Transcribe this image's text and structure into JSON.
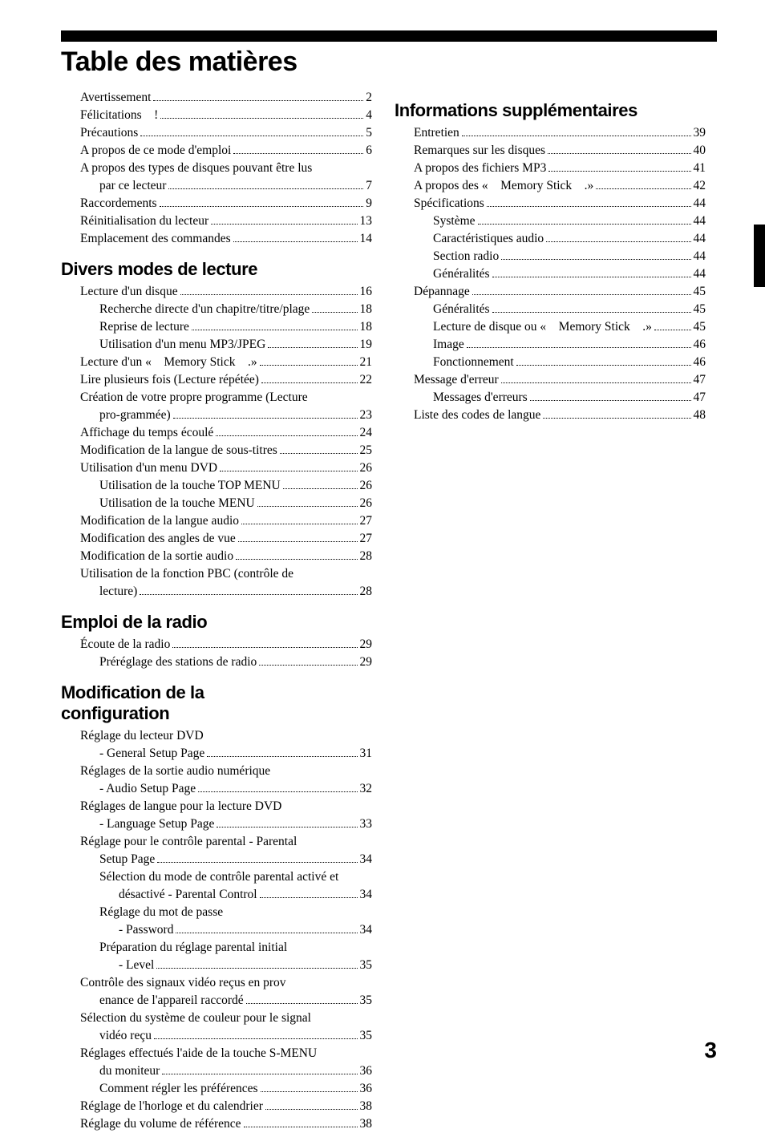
{
  "strap": true,
  "main_title": "Table des matières",
  "page_number": "3",
  "columns": [
    {
      "groups": [
        {
          "heading": null,
          "entries": [
            {
              "indent": 0,
              "label": "Avertissement",
              "page": "2"
            },
            {
              "indent": 0,
              "label": "Félicitations　!",
              "page": "4"
            },
            {
              "indent": 0,
              "label": "Précautions",
              "page": "5"
            },
            {
              "indent": 0,
              "label": "A propos de ce mode d'emploi",
              "page": "6"
            },
            {
              "indent": 0,
              "wrap": true,
              "label_top": "A propos des types de disques pouvant être lus",
              "label_bottom": "par ce lecteur",
              "page": "7"
            },
            {
              "indent": 0,
              "label": "Raccordements",
              "page": "9"
            },
            {
              "indent": 0,
              "label": "Réinitialisation du lecteur",
              "page": "13"
            },
            {
              "indent": 0,
              "label": "Emplacement des commandes",
              "page": "14"
            }
          ]
        },
        {
          "heading": "Divers modes de lecture",
          "entries": [
            {
              "indent": 0,
              "label": "Lecture d'un disque",
              "page": "16"
            },
            {
              "indent": 1,
              "label": "Recherche directe d'un chapitre/titre/plage",
              "page": "18",
              "tight": true
            },
            {
              "indent": 1,
              "label": "Reprise de lecture",
              "page": "18"
            },
            {
              "indent": 1,
              "label": "Utilisation d'un menu MP3/JPEG",
              "page": "19"
            },
            {
              "indent": 0,
              "label": "Lecture d'un «　Memory Stick　.»",
              "page": "21"
            },
            {
              "indent": 0,
              "label": "Lire plusieurs fois (Lecture répétée)",
              "page": "22"
            },
            {
              "indent": 0,
              "wrap": true,
              "label_top": "Création de votre propre programme (Lecture",
              "label_bottom": "pro-grammée)",
              "page": "23"
            },
            {
              "indent": 0,
              "label": "Affichage du temps écoulé",
              "page": "24"
            },
            {
              "indent": 0,
              "label": "Modification de la langue de sous-titres",
              "page": "25"
            },
            {
              "indent": 0,
              "label": "Utilisation d'un menu DVD",
              "page": "26"
            },
            {
              "indent": 1,
              "label": "Utilisation de la touche TOP MENU",
              "page": "26"
            },
            {
              "indent": 1,
              "label": "Utilisation de la touche MENU",
              "page": "26"
            },
            {
              "indent": 0,
              "label": "Modification de la langue audio",
              "page": "27"
            },
            {
              "indent": 0,
              "label": "Modification des angles de vue",
              "page": "27"
            },
            {
              "indent": 0,
              "label": "Modification de la sortie audio",
              "page": "28"
            },
            {
              "indent": 0,
              "wrap": true,
              "label_top": "Utilisation de la fonction PBC (contrôle de",
              "label_bottom": "lecture)",
              "page": "28"
            }
          ]
        },
        {
          "heading": "Emploi de la radio",
          "entries": [
            {
              "indent": 0,
              "label": "Écoute de la radio",
              "page": "29"
            },
            {
              "indent": 1,
              "label": "Préréglage des stations de radio",
              "page": "29"
            }
          ]
        },
        {
          "heading": "Modification de la configuration",
          "heading_lines": [
            "Modification de la",
            "configuration"
          ],
          "entries": [
            {
              "indent": 0,
              "wrap": true,
              "label_top": "Réglage du lecteur DVD",
              "label_bottom": "- General Setup Page",
              "page": "31"
            },
            {
              "indent": 0,
              "wrap": true,
              "label_top": "Réglages de la sortie audio numérique",
              "label_bottom": "- Audio Setup Page",
              "page": "32"
            },
            {
              "indent": 0,
              "wrap": true,
              "label_top": "Réglages de langue pour la lecture DVD",
              "label_bottom": "- Language Setup Page",
              "page": "33"
            },
            {
              "indent": 0,
              "wrap": true,
              "label_top": "Réglage pour le contrôle parental - Parental",
              "label_bottom": "Setup Page",
              "page": "34"
            },
            {
              "indent": 1,
              "wrap": true,
              "label_top": "Sélection du mode de contrôle parental activé et",
              "label_bottom": "désactivé - Parental Control",
              "page": "34"
            },
            {
              "indent": 1,
              "wrap": true,
              "label_top": "Réglage du mot de passe",
              "label_bottom": "- Password",
              "page": "34"
            },
            {
              "indent": 1,
              "wrap": true,
              "label_top": "Préparation du réglage parental initial",
              "label_bottom": "- Level",
              "page": "35"
            },
            {
              "indent": 0,
              "wrap": true,
              "label_top": "Contrôle des signaux vidéo reçus en prov",
              "label_bottom": "enance de l'appareil raccordé",
              "page": "35"
            },
            {
              "indent": 0,
              "wrap": true,
              "label_top": "Sélection du système de couleur pour le signal",
              "label_bottom": "vidéo reçu",
              "page": "35"
            },
            {
              "indent": 0,
              "wrap": true,
              "label_top": "Réglages effectués l'aide de la touche S-MENU",
              "label_bottom": "du moniteur",
              "page": "36"
            },
            {
              "indent": 1,
              "label": "Comment régler les préférences",
              "page": "36"
            },
            {
              "indent": 0,
              "label": "Réglage de l'horloge et du calendrier",
              "page": "38"
            },
            {
              "indent": 0,
              "label": "Réglage du volume de référence",
              "page": "38"
            }
          ]
        }
      ]
    },
    {
      "groups": [
        {
          "heading": "Informations supplémentaires",
          "entries": [
            {
              "indent": 0,
              "label": "Entretien",
              "page": "39"
            },
            {
              "indent": 0,
              "label": "Remarques sur les disques",
              "page": "40"
            },
            {
              "indent": 0,
              "label": "A propos des fichiers MP3",
              "page": "41"
            },
            {
              "indent": 0,
              "label": "A propos des «　Memory Stick　.»",
              "page": "42"
            },
            {
              "indent": 0,
              "label": "Spécifications",
              "page": "44"
            },
            {
              "indent": 1,
              "label": "Système",
              "page": "44"
            },
            {
              "indent": 1,
              "label": "Caractéristiques audio",
              "page": "44"
            },
            {
              "indent": 1,
              "label": "Section radio",
              "page": "44"
            },
            {
              "indent": 1,
              "label": "Généralités",
              "page": "44"
            },
            {
              "indent": 0,
              "label": "Dépannage",
              "page": "45"
            },
            {
              "indent": 1,
              "label": "Généralités",
              "page": "45"
            },
            {
              "indent": 1,
              "label": "Lecture de disque ou «　Memory Stick　.»",
              "page": "45"
            },
            {
              "indent": 1,
              "label": "Image",
              "page": "46"
            },
            {
              "indent": 1,
              "label": "Fonctionnement",
              "page": "46"
            },
            {
              "indent": 0,
              "label": "Message d'erreur",
              "page": "47"
            },
            {
              "indent": 1,
              "label": "Messages d'erreurs",
              "page": "47"
            },
            {
              "indent": 0,
              "label": "Liste des codes de langue",
              "page": "48"
            }
          ]
        }
      ]
    }
  ]
}
